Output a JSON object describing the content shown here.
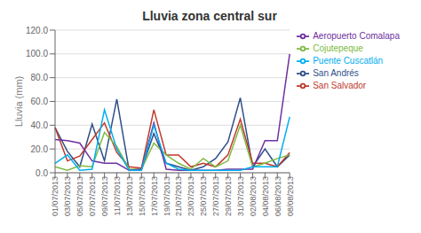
{
  "chart_data": {
    "type": "line",
    "title": "Lluvia zona central sur",
    "y_label": "Lluvia (mm)",
    "categories": [
      "01/07/2013",
      "03/07/2013",
      "05/07/2013",
      "07/07/2013",
      "09/07/2013",
      "11/07/2013",
      "13/07/2013",
      "15/07/2013",
      "17/07/2013",
      "19/07/2013",
      "21/07/2013",
      "23/07/2013",
      "25/07/2013",
      "27/07/2013",
      "29/07/2013",
      "31/07/2013",
      "02/08/2013",
      "04/08/2013",
      "06/08/2013",
      "08/08/2013"
    ],
    "series": [
      {
        "name": "San Andrés",
        "color": "#2e4f8a",
        "values": [
          38,
          18,
          5,
          41,
          10,
          62,
          2,
          3,
          33,
          8,
          5,
          2,
          5,
          12,
          26,
          63,
          5,
          20,
          5,
          15
        ]
      },
      {
        "name": "San Salvador",
        "color": "#c0392b",
        "values": [
          38,
          10,
          14,
          28,
          42,
          17,
          5,
          4,
          53,
          15,
          15,
          5,
          8,
          5,
          15,
          45,
          8,
          8,
          5,
          17
        ]
      },
      {
        "name": "Cojutepeque",
        "color": "#7dbb42",
        "values": [
          5,
          2,
          6,
          5,
          34,
          22,
          3,
          3,
          25,
          15,
          8,
          3,
          12,
          5,
          10,
          40,
          5,
          8,
          12,
          15
        ]
      },
      {
        "name": "Aeropuerto Comalapa",
        "color": "#6f30a0",
        "values": [
          28,
          27,
          25,
          10,
          8,
          8,
          2,
          3,
          42,
          3,
          2,
          2,
          2,
          2,
          3,
          3,
          3,
          27,
          27,
          100
        ]
      },
      {
        "name": "Puente Cuscatlán",
        "color": "#00aeef",
        "values": [
          8,
          15,
          2,
          3,
          53,
          20,
          2,
          2,
          40,
          8,
          3,
          2,
          2,
          2,
          2,
          2,
          5,
          5,
          5,
          47
        ]
      }
    ],
    "ylim": [
      0,
      120
    ],
    "yticks": [
      {
        "value": 0,
        "label": "0.0"
      },
      {
        "value": 20,
        "label": "20.0"
      },
      {
        "value": 40,
        "label": "40.0"
      },
      {
        "value": 60,
        "label": "60.0"
      },
      {
        "value": 80,
        "label": "80.0"
      },
      {
        "value": 100,
        "label": "100.0"
      },
      {
        "value": 120,
        "label": "120.0"
      }
    ],
    "grid": true,
    "legend": "right"
  }
}
